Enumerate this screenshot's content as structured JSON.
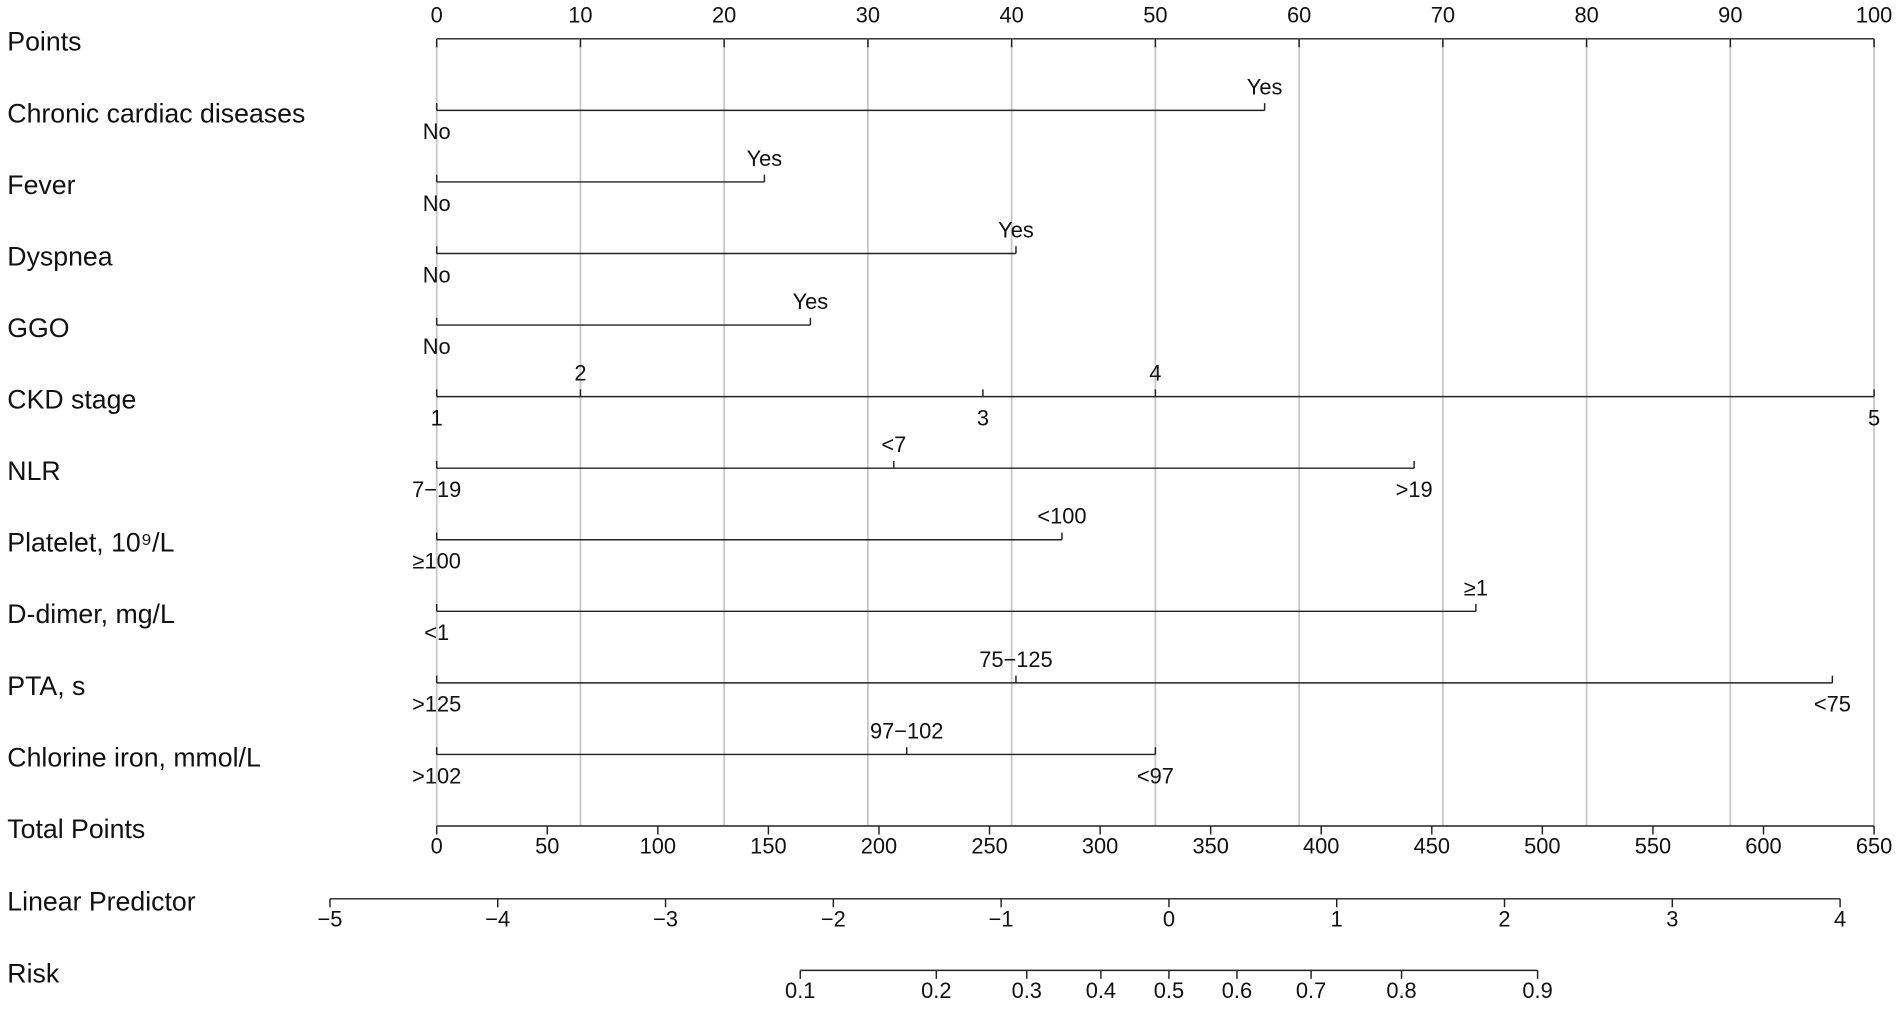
{
  "chart_data": {
    "type": "nomogram",
    "rows": [
      {
        "label": "Points",
        "xlim": [
          0,
          100
        ],
        "xticks": [
          0,
          10,
          20,
          30,
          40,
          50,
          60,
          70,
          80,
          90,
          100
        ]
      },
      {
        "label": "Chronic cardiac diseases",
        "levels": [
          "No",
          "Yes"
        ],
        "values": [
          0,
          57.6
        ]
      },
      {
        "label": "Fever",
        "levels": [
          "No",
          "Yes"
        ],
        "values": [
          0,
          22.8
        ]
      },
      {
        "label": "Dyspnea",
        "levels": [
          "No",
          "Yes"
        ],
        "values": [
          0,
          40.3
        ]
      },
      {
        "label": "GGO",
        "levels": [
          "No",
          "Yes"
        ],
        "values": [
          0,
          26.0
        ]
      },
      {
        "label": "CKD stage",
        "levels": [
          "1",
          "2",
          "3",
          "4",
          "5"
        ],
        "values": [
          0,
          10.0,
          38.0,
          50.0,
          100
        ]
      },
      {
        "label": "NLR",
        "levels": [
          "7−19",
          "<7",
          ">19"
        ],
        "values": [
          0,
          31.8,
          68.0
        ]
      },
      {
        "label": "Platelet, 10⁹/L",
        "levels": [
          "≥100",
          "<100"
        ],
        "values": [
          0,
          43.5
        ]
      },
      {
        "label": "D-dimer, mg/L",
        "levels": [
          "<1",
          "≥1"
        ],
        "values": [
          0,
          72.3
        ]
      },
      {
        "label": "PTA, s",
        "levels": [
          ">125",
          "75−125",
          "<75"
        ],
        "values": [
          0,
          40.3,
          97.1
        ]
      },
      {
        "label": "Chlorine iron, mmol/L",
        "levels": [
          ">102",
          "97−102",
          "<97"
        ],
        "values": [
          0,
          32.7,
          50.0
        ]
      },
      {
        "label": "Total Points",
        "xlim": [
          0,
          650
        ],
        "xticks": [
          0,
          50,
          100,
          150,
          200,
          250,
          300,
          350,
          400,
          450,
          500,
          550,
          600,
          650
        ]
      },
      {
        "label": "Linear Predictor",
        "xlim": [
          -5,
          4
        ],
        "xticks": [
          {
            "value": -5,
            "label": "−5"
          },
          {
            "value": -4,
            "label": "−4"
          },
          {
            "value": -3,
            "label": "−3"
          },
          {
            "value": -2,
            "label": "−2"
          },
          {
            "value": -1,
            "label": "−1"
          },
          0,
          1,
          2,
          3,
          4
        ]
      },
      {
        "label": "Risk",
        "xlim": [
          0.1,
          0.9
        ],
        "xticks": [
          0.1,
          0.2,
          0.3,
          0.4,
          0.5,
          0.6,
          0.7,
          0.8,
          0.9
        ],
        "scale": "logit"
      }
    ]
  }
}
